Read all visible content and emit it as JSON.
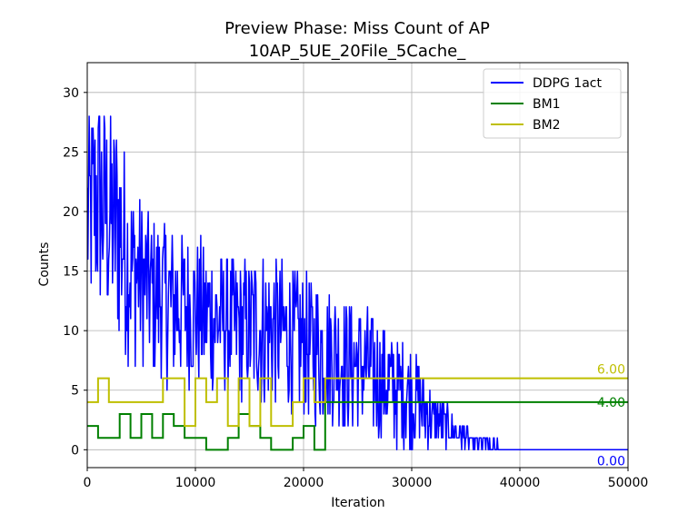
{
  "chart_data": {
    "type": "line",
    "title": "Preview Phase: Miss Count of AP",
    "subtitle": "10AP_5UE_20File_5Cache_",
    "xlabel": "Iteration",
    "ylabel": "Counts",
    "xlim": [
      0,
      50000
    ],
    "ylim": [
      -1.5,
      32.5
    ],
    "xticks": [
      0,
      10000,
      20000,
      30000,
      40000,
      50000
    ],
    "yticks": [
      0,
      5,
      10,
      15,
      20,
      25,
      30
    ],
    "grid": true,
    "legend_position": "top-right",
    "series": [
      {
        "name": "DDPG 1act",
        "color": "#0000ff",
        "style": "noisy-band",
        "description_points": {
          "x": [
            0,
            1000,
            2000,
            3000,
            4000,
            5000,
            6000,
            8000,
            10000,
            12000,
            14000,
            16000,
            18000,
            20000,
            22000,
            24000,
            26000,
            28000,
            30000,
            31000,
            32000,
            33000,
            34000,
            36000,
            40000,
            45000,
            50000
          ],
          "upper": [
            28,
            31,
            29,
            28,
            23,
            21,
            20,
            19,
            18,
            17,
            16,
            17,
            16,
            15,
            14,
            13,
            12,
            10,
            9,
            7,
            5,
            4,
            3,
            1,
            0,
            0,
            0
          ],
          "lower": [
            10,
            10,
            9,
            8,
            7,
            7,
            6,
            5,
            5,
            4,
            4,
            3,
            3,
            2,
            2,
            1,
            1,
            0,
            0,
            0,
            0,
            0,
            0,
            0,
            0,
            0,
            0
          ],
          "spikes": [
            {
              "x": 36800,
              "y": 1
            },
            {
              "x": 37900,
              "y": 1
            }
          ]
        },
        "final_label": "0.00"
      },
      {
        "name": "BM1",
        "color": "#008000",
        "style": "step",
        "x": [
          0,
          1000,
          3000,
          4000,
          5000,
          6000,
          7000,
          8000,
          9000,
          11000,
          13000,
          14000,
          15000,
          16000,
          17000,
          19000,
          20000,
          21000,
          22000,
          50000
        ],
        "y": [
          2,
          1,
          3,
          1,
          3,
          1,
          3,
          2,
          1,
          0,
          1,
          3,
          2,
          1,
          0,
          1,
          2,
          0,
          4,
          4
        ],
        "final_label": "4.00"
      },
      {
        "name": "BM2",
        "color": "#bfbf00",
        "style": "step",
        "x": [
          0,
          1000,
          2000,
          6000,
          7000,
          9000,
          10000,
          11000,
          12000,
          13000,
          14000,
          15000,
          16000,
          17000,
          19000,
          20000,
          21000,
          22000,
          50000
        ],
        "y": [
          4,
          6,
          4,
          4,
          6,
          2,
          6,
          4,
          6,
          2,
          6,
          2,
          6,
          2,
          4,
          6,
          4,
          6,
          6
        ],
        "final_label": "6.00"
      }
    ]
  }
}
